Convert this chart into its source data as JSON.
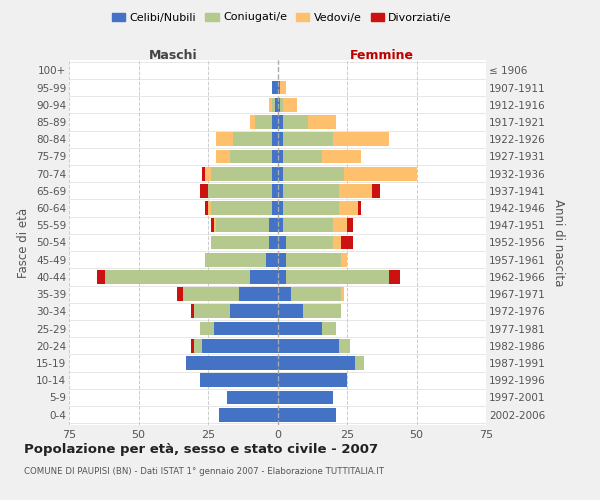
{
  "age_groups": [
    "100+",
    "95-99",
    "90-94",
    "85-89",
    "80-84",
    "75-79",
    "70-74",
    "65-69",
    "60-64",
    "55-59",
    "50-54",
    "45-49",
    "40-44",
    "35-39",
    "30-34",
    "25-29",
    "20-24",
    "15-19",
    "10-14",
    "5-9",
    "0-4"
  ],
  "birth_years": [
    "≤ 1906",
    "1907-1911",
    "1912-1916",
    "1917-1921",
    "1922-1926",
    "1927-1931",
    "1932-1936",
    "1937-1941",
    "1942-1946",
    "1947-1951",
    "1952-1956",
    "1957-1961",
    "1962-1966",
    "1967-1971",
    "1972-1976",
    "1977-1981",
    "1982-1986",
    "1987-1991",
    "1992-1996",
    "1997-2001",
    "2002-2006"
  ],
  "male": {
    "celibi": [
      0,
      2,
      1,
      2,
      2,
      2,
      2,
      2,
      2,
      3,
      3,
      4,
      10,
      14,
      17,
      23,
      27,
      33,
      28,
      18,
      21
    ],
    "coniugati": [
      0,
      0,
      1,
      6,
      14,
      15,
      22,
      23,
      22,
      19,
      21,
      22,
      52,
      20,
      13,
      5,
      3,
      0,
      0,
      0,
      0
    ],
    "vedovi": [
      0,
      0,
      1,
      2,
      6,
      5,
      2,
      0,
      1,
      1,
      0,
      0,
      0,
      0,
      0,
      0,
      0,
      0,
      0,
      0,
      0
    ],
    "divorziati": [
      0,
      0,
      0,
      0,
      0,
      0,
      1,
      3,
      1,
      1,
      0,
      0,
      3,
      2,
      1,
      0,
      1,
      0,
      0,
      0,
      0
    ]
  },
  "female": {
    "nubili": [
      0,
      1,
      1,
      2,
      2,
      2,
      2,
      2,
      2,
      2,
      3,
      3,
      3,
      5,
      9,
      16,
      22,
      28,
      25,
      20,
      21
    ],
    "coniugate": [
      0,
      0,
      1,
      9,
      18,
      14,
      22,
      20,
      20,
      18,
      17,
      20,
      37,
      18,
      14,
      5,
      4,
      3,
      0,
      0,
      0
    ],
    "vedove": [
      0,
      2,
      5,
      10,
      20,
      14,
      26,
      12,
      7,
      5,
      3,
      2,
      0,
      1,
      0,
      0,
      0,
      0,
      0,
      0,
      0
    ],
    "divorziate": [
      0,
      0,
      0,
      0,
      0,
      0,
      0,
      3,
      1,
      2,
      4,
      0,
      4,
      0,
      0,
      0,
      0,
      0,
      0,
      0,
      0
    ]
  },
  "colors": {
    "celibi": "#4472c4",
    "coniugati": "#b5c98e",
    "vedovi": "#ffc06e",
    "divorziati": "#cc1111"
  },
  "xlim": 75,
  "title": "Popolazione per età, sesso e stato civile - 2007",
  "subtitle": "COMUNE DI PAUPISI (BN) - Dati ISTAT 1° gennaio 2007 - Elaborazione TUTTITALIA.IT",
  "ylabel_left": "Fasce di età",
  "ylabel_right": "Anni di nascita",
  "xlabel_left": "Maschi",
  "xlabel_right": "Femmine",
  "legend_labels": [
    "Celibi/Nubili",
    "Coniugati/e",
    "Vedovi/e",
    "Divorziati/e"
  ],
  "bg_color": "#f0f0f0",
  "plot_bg": "#ffffff"
}
